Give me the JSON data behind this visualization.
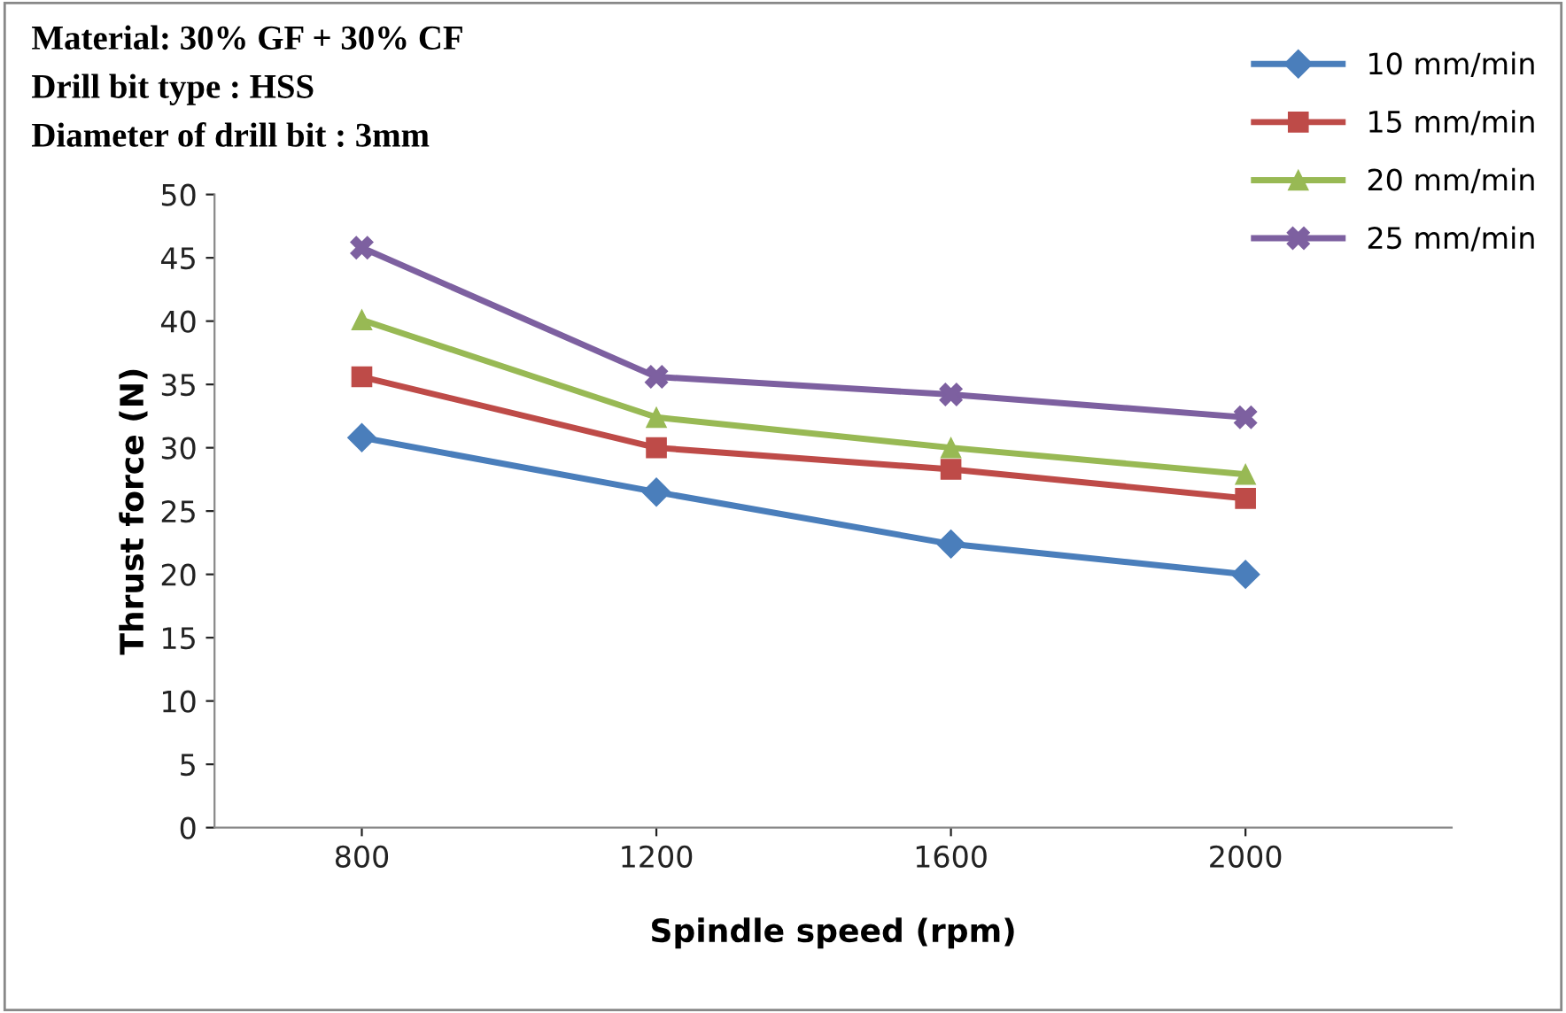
{
  "chart_data": {
    "type": "line",
    "xlabel": "Spindle speed (rpm)",
    "ylabel": "Thrust force (N)",
    "categories": [
      "800",
      "1200",
      "1600",
      "2000"
    ],
    "series": [
      {
        "name": "10 mm/min",
        "color": "#4a7ebb",
        "marker": "diamond",
        "values": [
          30.8,
          26.5,
          22.4,
          20.0
        ]
      },
      {
        "name": "15 mm/min",
        "color": "#be4b48",
        "marker": "square",
        "values": [
          35.6,
          30.0,
          28.3,
          26.0
        ]
      },
      {
        "name": "20 mm/min",
        "color": "#98b954",
        "marker": "triangle",
        "values": [
          40.1,
          32.4,
          30.0,
          27.9
        ]
      },
      {
        "name": "25 mm/min",
        "color": "#7d60a0",
        "marker": "cross",
        "values": [
          45.8,
          35.6,
          34.2,
          32.4
        ]
      }
    ],
    "ylim": [
      0,
      50
    ],
    "yticks": [
      0,
      5,
      10,
      15,
      20,
      25,
      30,
      35,
      40,
      45,
      50
    ],
    "grid": false,
    "legend": "top right",
    "annotations": [
      "Material: 30% GF + 30% CF",
      "Drill bit type : HSS",
      "Diameter of drill bit : 3mm"
    ]
  }
}
